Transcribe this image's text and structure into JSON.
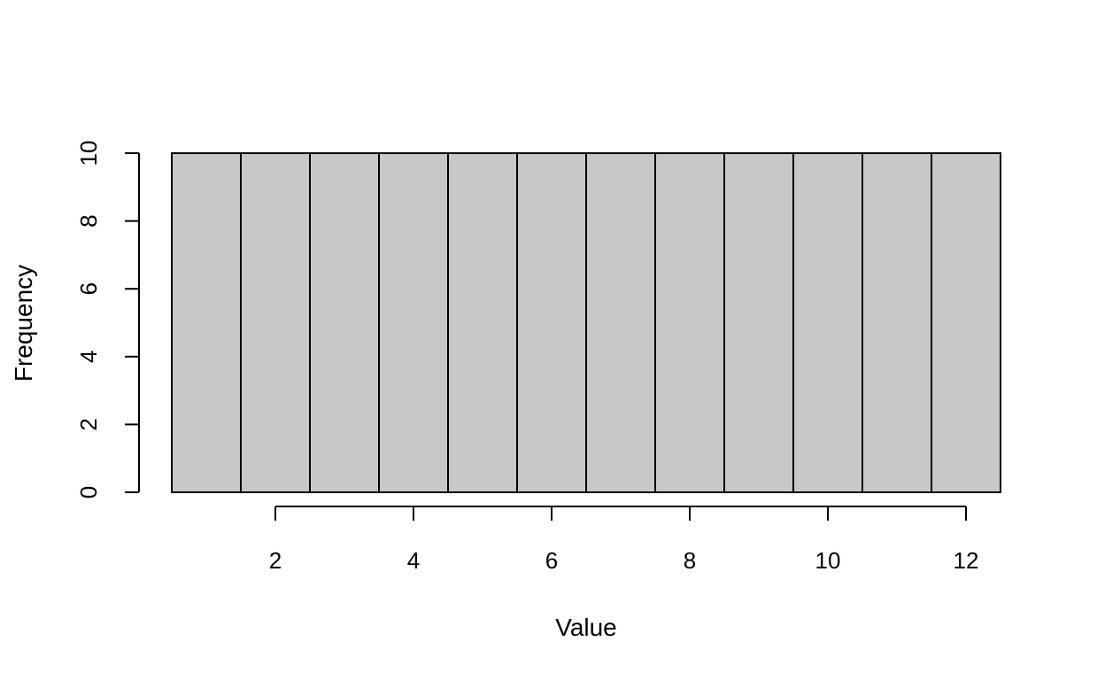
{
  "chart_data": {
    "type": "bar",
    "histogram": true,
    "title": "",
    "xlabel": "Value",
    "ylabel": "Frequency",
    "bins": [
      {
        "x0": 0.5,
        "x1": 1.5,
        "value": 10
      },
      {
        "x0": 1.5,
        "x1": 2.5,
        "value": 10
      },
      {
        "x0": 2.5,
        "x1": 3.5,
        "value": 10
      },
      {
        "x0": 3.5,
        "x1": 4.5,
        "value": 10
      },
      {
        "x0": 4.5,
        "x1": 5.5,
        "value": 10
      },
      {
        "x0": 5.5,
        "x1": 6.5,
        "value": 10
      },
      {
        "x0": 6.5,
        "x1": 7.5,
        "value": 10
      },
      {
        "x0": 7.5,
        "x1": 8.5,
        "value": 10
      },
      {
        "x0": 8.5,
        "x1": 9.5,
        "value": 10
      },
      {
        "x0": 9.5,
        "x1": 10.5,
        "value": 10
      },
      {
        "x0": 10.5,
        "x1": 11.5,
        "value": 10
      },
      {
        "x0": 11.5,
        "x1": 12.5,
        "value": 10
      }
    ],
    "xlim": [
      0.5,
      12.5
    ],
    "ylim": [
      0,
      10
    ],
    "xticks": [
      "2",
      "4",
      "6",
      "8",
      "10",
      "12"
    ],
    "yticks": [
      "0",
      "2",
      "4",
      "6",
      "8",
      "10"
    ],
    "bar_color": "#c8c8c8",
    "edge_color": "#000000",
    "grid": false
  }
}
